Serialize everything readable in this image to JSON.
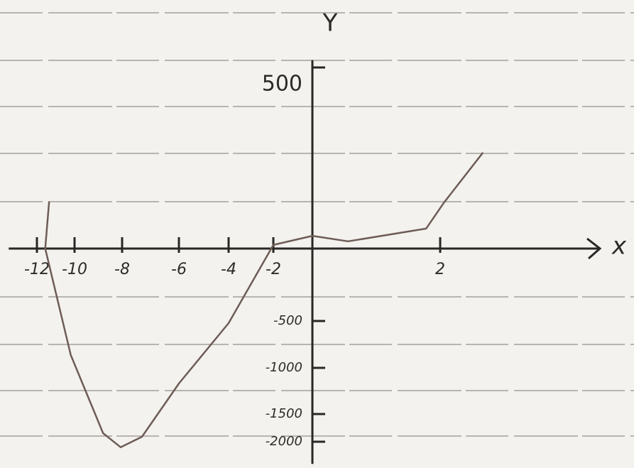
{
  "chart_data": {
    "type": "line",
    "x_label": "x",
    "y_label": "Y",
    "x": [
      -11.35,
      -11.56,
      -10.2,
      -8.8,
      -8.06,
      -7.3,
      -6,
      -4,
      -2,
      0,
      0.56,
      1.78,
      2.06,
      2.67
    ],
    "values": [
      130,
      0,
      -864,
      -1846,
      -2100,
      -1910,
      -1169,
      -523,
      10,
      35,
      20,
      55,
      127,
      265
    ],
    "color": "#6e5c57",
    "xlim": [
      -13.5,
      4.5
    ],
    "ylim": [
      -2400,
      520
    ],
    "xticks": [
      -12,
      -10,
      -8,
      -6,
      -4,
      -2,
      2
    ],
    "yticks": [
      500,
      -500,
      -1000,
      -1500,
      -2000
    ]
  }
}
